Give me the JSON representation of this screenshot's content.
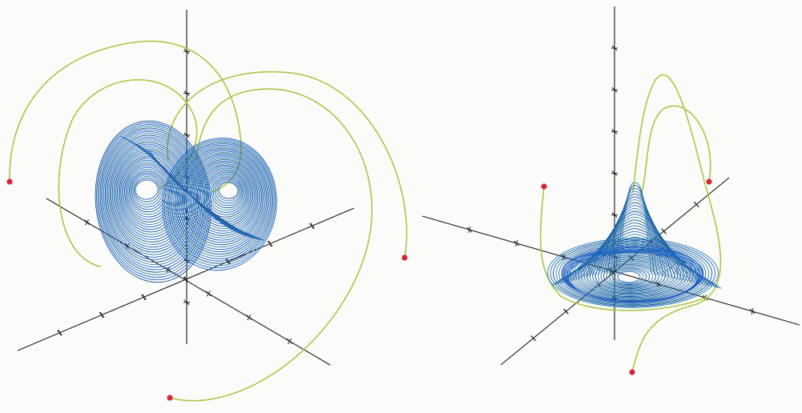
{
  "figure": {
    "panels": [
      {
        "name": "lorenz-attractor",
        "start_points": 3
      },
      {
        "name": "rossler-attractor",
        "start_points": 3
      }
    ]
  },
  "colors": {
    "attractor": "#1f63c6",
    "attractor_dark": "#1b4f8f",
    "attractor_teal": "#2b8aa8",
    "transient": "#c9d84a",
    "transient_dot": "#4d8f4a",
    "start_point": "#d3263a",
    "axis": "#1a1a1a",
    "background": "#fbfbf9"
  },
  "icons": {
    "start_marker": "red-dot-icon",
    "axis_tick": "cross-tick-icon"
  }
}
